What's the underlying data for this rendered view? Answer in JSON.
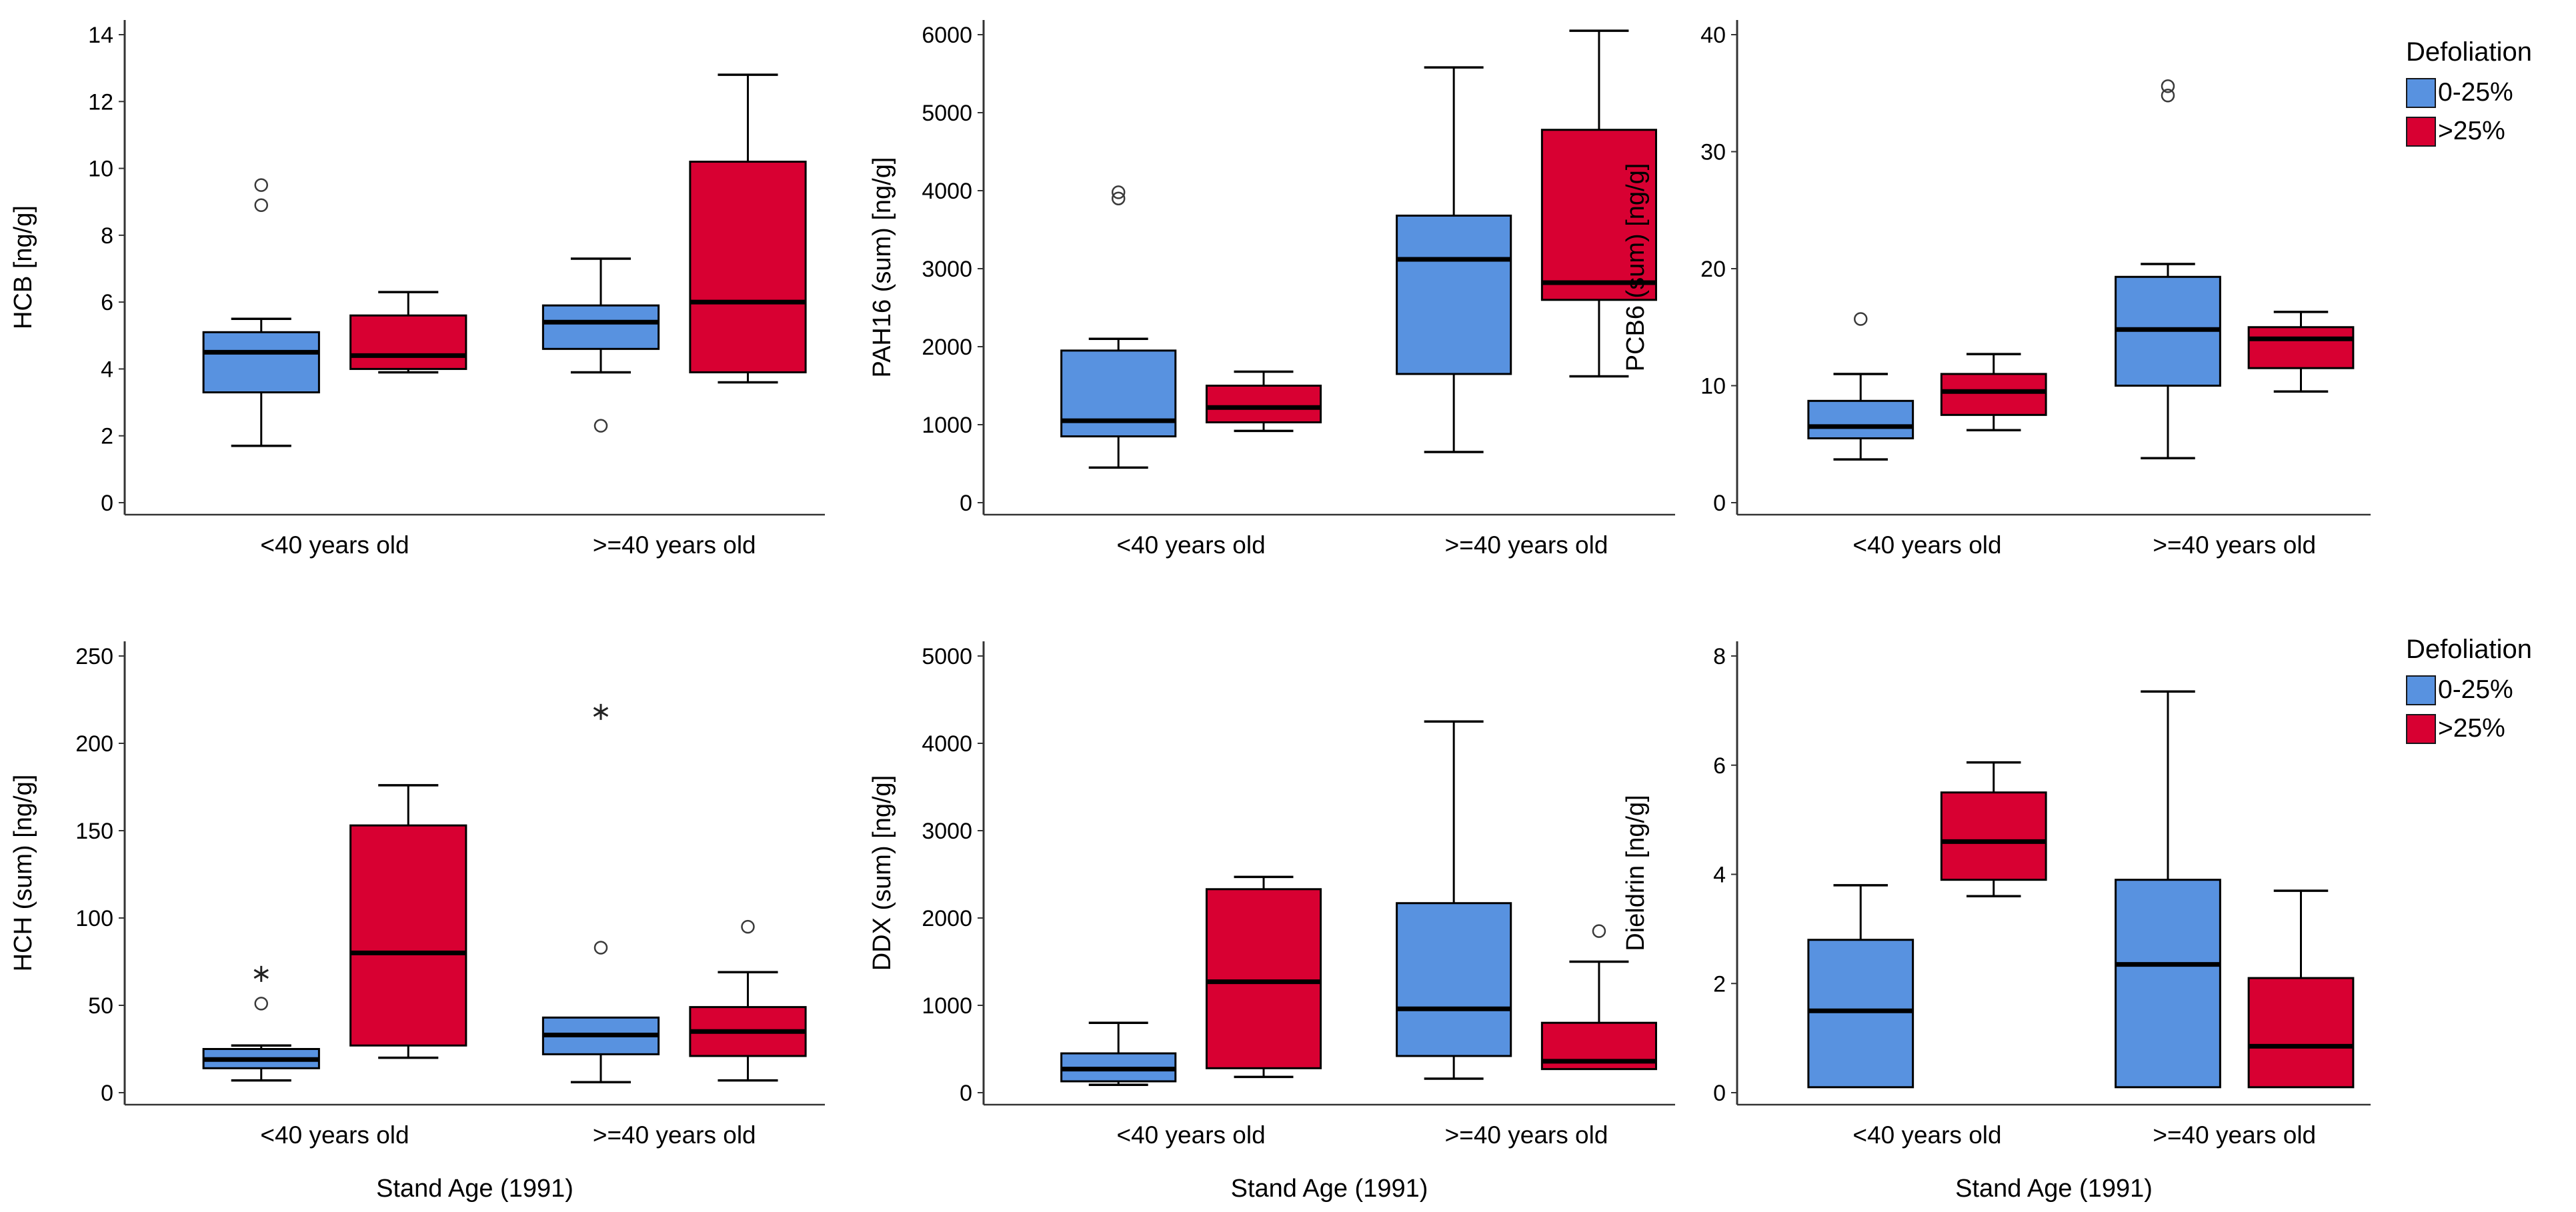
{
  "legend": {
    "title": "Defoliation",
    "items": [
      {
        "label": "0-25%",
        "color": "#5892E0"
      },
      {
        "label": ">25%",
        "color": "#D80032"
      }
    ]
  },
  "style": {
    "box_border": "#000000",
    "median_color": "#000000",
    "axis_color": "#333333",
    "outlier_color": "#3a3a3a",
    "text_color": "#000000"
  },
  "chart_data": [
    {
      "type": "box",
      "name": "hcb",
      "ylabel": "HCB [ng/g]",
      "ylim": [
        0,
        14
      ],
      "ytick_step": 2,
      "grid": false,
      "categories": [
        "<40 years old",
        ">=40 years old"
      ],
      "xlabel": "",
      "series_names": [
        "0-25%",
        ">25%"
      ],
      "legend_position": "right",
      "boxes": [
        {
          "category": "<40 years old",
          "series": "0-25%",
          "low": 1.7,
          "q1": 3.3,
          "median": 4.5,
          "q3": 5.1,
          "high": 5.5,
          "outliers": [
            {
              "value": 8.9,
              "type": "o"
            },
            {
              "value": 9.5,
              "type": "o"
            }
          ]
        },
        {
          "category": "<40 years old",
          "series": ">25%",
          "low": 3.9,
          "q1": 4.0,
          "median": 4.4,
          "q3": 5.6,
          "high": 6.3,
          "outliers": []
        },
        {
          "category": ">=40 years old",
          "series": "0-25%",
          "low": 3.9,
          "q1": 4.6,
          "median": 5.4,
          "q3": 5.9,
          "high": 7.3,
          "outliers": [
            {
              "value": 2.3,
              "type": "o"
            }
          ]
        },
        {
          "category": ">=40 years old",
          "series": ">25%",
          "low": 3.6,
          "q1": 3.9,
          "median": 6.0,
          "q3": 10.2,
          "high": 12.8,
          "outliers": []
        }
      ]
    },
    {
      "type": "box",
      "name": "pah16",
      "ylabel": "PAH16 (sum) [ng/g]",
      "ylim": [
        0,
        6000
      ],
      "ytick_step": 1000,
      "grid": false,
      "categories": [
        "<40 years old",
        ">=40 years old"
      ],
      "xlabel": "",
      "series_names": [
        "0-25%",
        ">25%"
      ],
      "legend_position": "right",
      "boxes": [
        {
          "category": "<40 years old",
          "series": "0-25%",
          "low": 450,
          "q1": 850,
          "median": 1050,
          "q3": 1950,
          "high": 2100,
          "outliers": [
            {
              "value": 3900,
              "type": "o"
            },
            {
              "value": 3980,
              "type": "o"
            }
          ]
        },
        {
          "category": "<40 years old",
          "series": ">25%",
          "low": 920,
          "q1": 1030,
          "median": 1220,
          "q3": 1500,
          "high": 1680,
          "outliers": []
        },
        {
          "category": ">=40 years old",
          "series": "0-25%",
          "low": 650,
          "q1": 1650,
          "median": 3120,
          "q3": 3680,
          "high": 5580,
          "outliers": []
        },
        {
          "category": ">=40 years old",
          "series": ">25%",
          "low": 1620,
          "q1": 2600,
          "median": 2820,
          "q3": 4780,
          "high": 6050,
          "outliers": []
        }
      ]
    },
    {
      "type": "box",
      "name": "pcb6",
      "ylabel": "PCB6 (sum) [ng/g]",
      "ylim": [
        0,
        40
      ],
      "ytick_step": 10,
      "grid": false,
      "categories": [
        "<40 years old",
        ">=40 years old"
      ],
      "xlabel": "",
      "series_names": [
        "0-25%",
        ">25%"
      ],
      "legend_position": "right",
      "boxes": [
        {
          "category": "<40 years old",
          "series": "0-25%",
          "low": 3.7,
          "q1": 5.5,
          "median": 6.5,
          "q3": 8.7,
          "high": 11.0,
          "outliers": [
            {
              "value": 15.7,
              "type": "o"
            }
          ]
        },
        {
          "category": "<40 years old",
          "series": ">25%",
          "low": 6.2,
          "q1": 7.5,
          "median": 9.5,
          "q3": 11.0,
          "high": 12.7,
          "outliers": []
        },
        {
          "category": ">=40 years old",
          "series": "0-25%",
          "low": 3.8,
          "q1": 10.0,
          "median": 14.8,
          "q3": 19.3,
          "high": 20.4,
          "outliers": [
            {
              "value": 34.8,
              "type": "o"
            },
            {
              "value": 35.6,
              "type": "o"
            }
          ]
        },
        {
          "category": ">=40 years old",
          "series": ">25%",
          "low": 9.5,
          "q1": 11.5,
          "median": 14.0,
          "q3": 15.0,
          "high": 16.3,
          "outliers": []
        }
      ]
    },
    {
      "type": "box",
      "name": "hch",
      "ylabel": "HCH (sum) [ng/g]",
      "ylim": [
        0,
        250
      ],
      "ytick_step": 50,
      "grid": false,
      "categories": [
        "<40 years old",
        ">=40 years old"
      ],
      "xlabel": "Stand Age (1991)",
      "series_names": [
        "0-25%",
        ">25%"
      ],
      "legend_position": "right",
      "boxes": [
        {
          "category": "<40 years old",
          "series": "0-25%",
          "low": 7,
          "q1": 14,
          "median": 19,
          "q3": 25,
          "high": 27,
          "outliers": [
            {
              "value": 51,
              "type": "o"
            },
            {
              "value": 68,
              "type": "*"
            }
          ]
        },
        {
          "category": "<40 years old",
          "series": ">25%",
          "low": 20,
          "q1": 27,
          "median": 80,
          "q3": 153,
          "high": 176,
          "outliers": []
        },
        {
          "category": ">=40 years old",
          "series": "0-25%",
          "low": 6,
          "q1": 22,
          "median": 33,
          "q3": 43,
          "high": 44,
          "outliers": [
            {
              "value": 83,
              "type": "o"
            },
            {
              "value": 218,
              "type": "*"
            }
          ]
        },
        {
          "category": ">=40 years old",
          "series": ">25%",
          "low": 7,
          "q1": 21,
          "median": 35,
          "q3": 49,
          "high": 69,
          "outliers": [
            {
              "value": 95,
              "type": "o"
            }
          ]
        }
      ]
    },
    {
      "type": "box",
      "name": "ddx",
      "ylabel": "DDX (sum) [ng/g]",
      "ylim": [
        0,
        5000
      ],
      "ytick_step": 1000,
      "grid": false,
      "categories": [
        "<40 years old",
        ">=40 years old"
      ],
      "xlabel": "Stand Age (1991)",
      "series_names": [
        "0-25%",
        ">25%"
      ],
      "legend_position": "right",
      "boxes": [
        {
          "category": "<40 years old",
          "series": "0-25%",
          "low": 90,
          "q1": 130,
          "median": 270,
          "q3": 450,
          "high": 800,
          "outliers": []
        },
        {
          "category": "<40 years old",
          "series": ">25%",
          "low": 180,
          "q1": 280,
          "median": 1270,
          "q3": 2330,
          "high": 2470,
          "outliers": []
        },
        {
          "category": ">=40 years old",
          "series": "0-25%",
          "low": 160,
          "q1": 420,
          "median": 960,
          "q3": 2170,
          "high": 4250,
          "outliers": []
        },
        {
          "category": ">=40 years old",
          "series": ">25%",
          "low": 250,
          "q1": 270,
          "median": 360,
          "q3": 800,
          "high": 1500,
          "outliers": [
            {
              "value": 1850,
              "type": "o"
            }
          ]
        }
      ]
    },
    {
      "type": "box",
      "name": "dieldrin",
      "ylabel": "Dieldrin [ng/g]",
      "ylim": [
        0,
        8
      ],
      "ytick_step": 2,
      "grid": false,
      "categories": [
        "<40 years old",
        ">=40 years old"
      ],
      "xlabel": "Stand Age (1991)",
      "series_names": [
        "0-25%",
        ">25%"
      ],
      "legend_position": "right",
      "boxes": [
        {
          "category": "<40 years old",
          "series": "0-25%",
          "low": 0.1,
          "q1": 0.1,
          "median": 1.5,
          "q3": 2.8,
          "high": 3.8,
          "outliers": []
        },
        {
          "category": "<40 years old",
          "series": ">25%",
          "low": 3.6,
          "q1": 3.9,
          "median": 4.6,
          "q3": 5.5,
          "high": 6.05,
          "outliers": []
        },
        {
          "category": ">=40 years old",
          "series": "0-25%",
          "low": 0.1,
          "q1": 0.1,
          "median": 2.35,
          "q3": 3.9,
          "high": 7.35,
          "outliers": []
        },
        {
          "category": ">=40 years old",
          "series": ">25%",
          "low": 0.1,
          "q1": 0.1,
          "median": 0.85,
          "q3": 2.1,
          "high": 3.7,
          "outliers": []
        }
      ]
    }
  ]
}
